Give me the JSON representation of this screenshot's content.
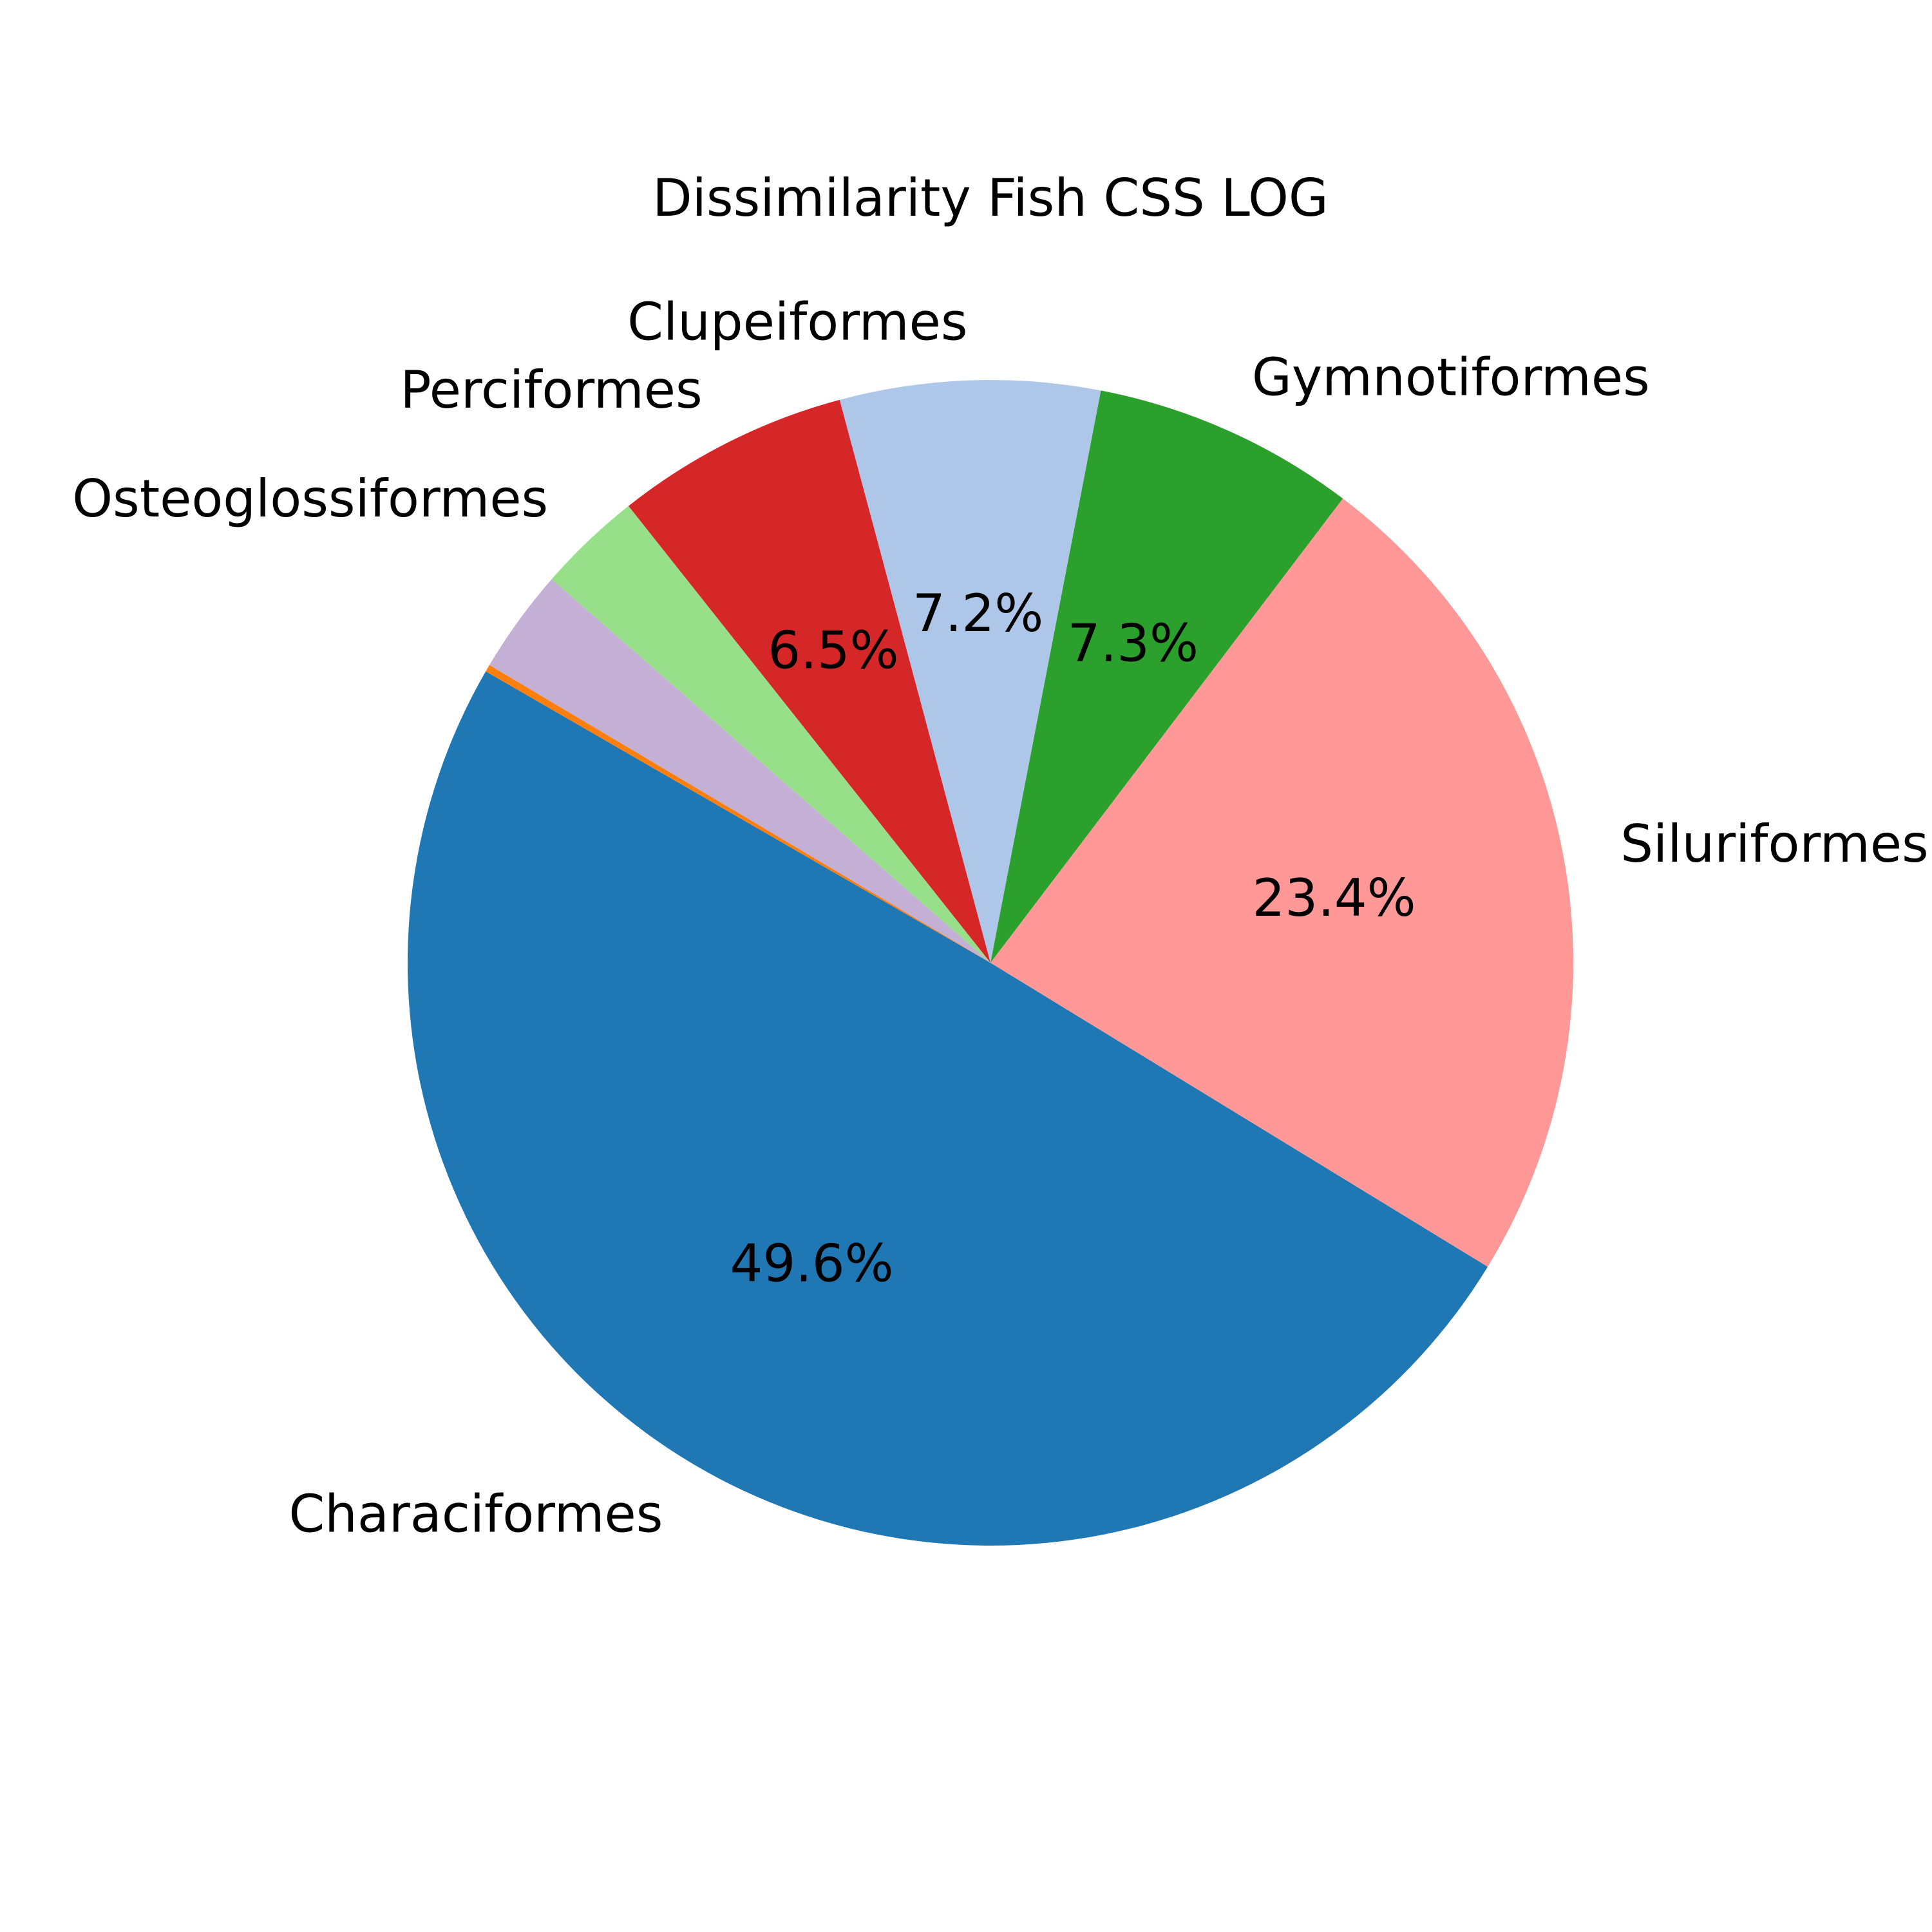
{
  "chart_data": {
    "type": "pie",
    "title": "Dissimilarity Fish CSS LOG",
    "slices": [
      {
        "label": "Characiformes",
        "value": 49.6,
        "pct_label": "49.6%",
        "color": "#1f77b4"
      },
      {
        "label": "Siluriformes",
        "value": 23.4,
        "pct_label": "23.4%",
        "color": "#ff9896"
      },
      {
        "label": "Gymnotiformes",
        "value": 7.3,
        "pct_label": "7.3%",
        "color": "#2ca02c"
      },
      {
        "label": "Clupeiformes",
        "value": 7.2,
        "pct_label": "7.2%",
        "color": "#aec7e8"
      },
      {
        "label": "Perciformes",
        "value": 6.5,
        "pct_label": "6.5%",
        "color": "#d62728"
      },
      {
        "label": "Osteoglossiformes",
        "value": 2.9,
        "pct_label": "",
        "color": "#98df8a"
      },
      {
        "label": "",
        "value": 2.9,
        "pct_label": "",
        "color": "#c5b0d5"
      },
      {
        "label": "",
        "value": 0.2,
        "pct_label": "",
        "color": "#ff7f0e"
      }
    ],
    "start_angle_deg": 150,
    "direction": "counterclockwise"
  }
}
